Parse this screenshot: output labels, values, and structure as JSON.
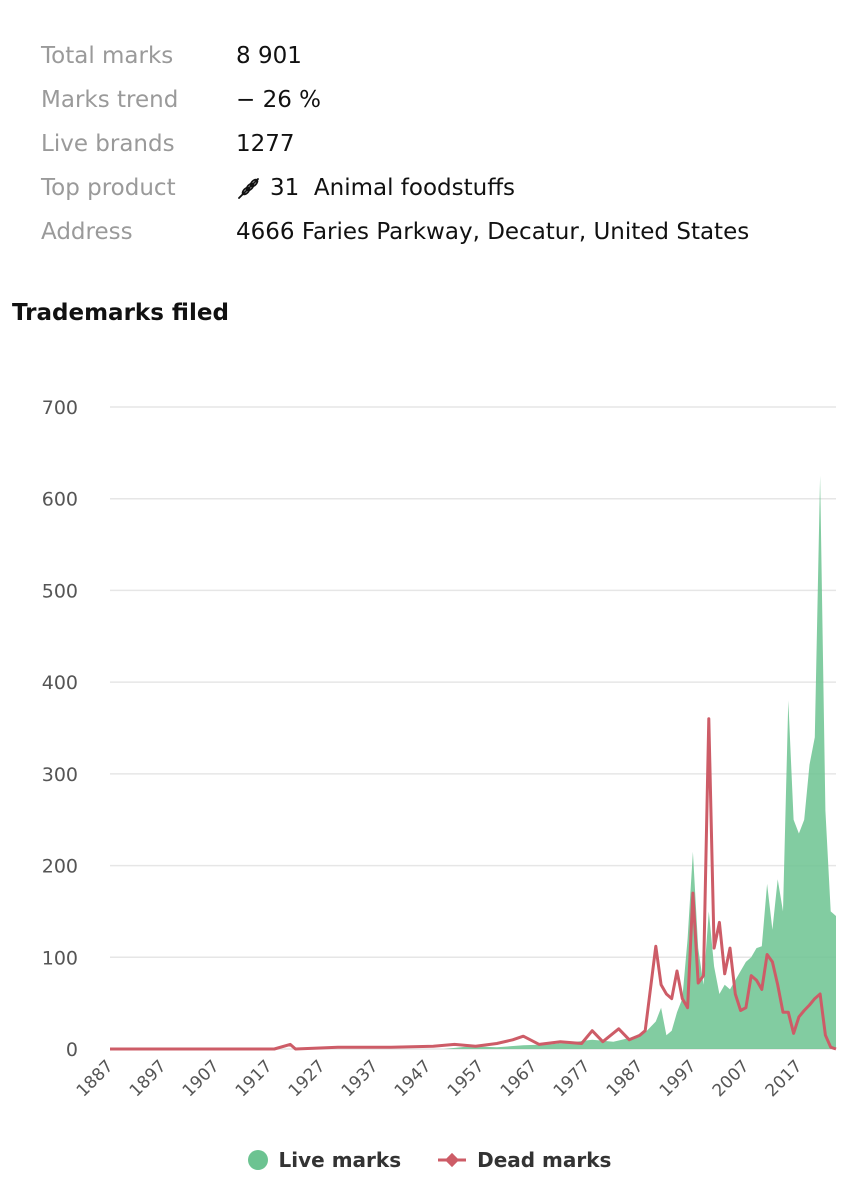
{
  "facts": [
    {
      "label": "Total marks",
      "value": "8 901"
    },
    {
      "label": "Marks trend",
      "value": "− 26 %"
    },
    {
      "label": "Live brands",
      "value": "1277"
    },
    {
      "label": "Top product",
      "value": "31  Animal foodstuffs",
      "icon": "wheat-icon"
    },
    {
      "label": "Address",
      "value": "4666 Faries Parkway, Decatur, United States"
    }
  ],
  "chart_data": {
    "type": "area",
    "title": "Trademarks filed",
    "xlabel": "",
    "ylabel": "",
    "ylim": [
      0,
      700
    ],
    "yticks": [
      "0",
      "100",
      "200",
      "300",
      "400",
      "500",
      "600",
      "700"
    ],
    "xticks": [
      "1887",
      "1897",
      "1907",
      "1917",
      "1927",
      "1937",
      "1947",
      "1957",
      "1967",
      "1977",
      "1987",
      "1997",
      "2007",
      "2017"
    ],
    "grid": true,
    "legend_position": "bottom",
    "series": [
      {
        "name": "Live marks",
        "type": "area",
        "color": "#6cc391",
        "points": [
          [
            1887,
            0
          ],
          [
            1950,
            0
          ],
          [
            1955,
            3
          ],
          [
            1960,
            2
          ],
          [
            1965,
            4
          ],
          [
            1970,
            5
          ],
          [
            1975,
            8
          ],
          [
            1978,
            10
          ],
          [
            1982,
            8
          ],
          [
            1985,
            12
          ],
          [
            1988,
            18
          ],
          [
            1990,
            30
          ],
          [
            1991,
            45
          ],
          [
            1992,
            15
          ],
          [
            1993,
            20
          ],
          [
            1994,
            40
          ],
          [
            1995,
            55
          ],
          [
            1996,
            120
          ],
          [
            1997,
            215
          ],
          [
            1998,
            110
          ],
          [
            1999,
            70
          ],
          [
            2000,
            150
          ],
          [
            2001,
            90
          ],
          [
            2002,
            60
          ],
          [
            2003,
            70
          ],
          [
            2004,
            65
          ],
          [
            2005,
            75
          ],
          [
            2006,
            85
          ],
          [
            2007,
            95
          ],
          [
            2008,
            100
          ],
          [
            2009,
            110
          ],
          [
            2010,
            112
          ],
          [
            2011,
            180
          ],
          [
            2012,
            130
          ],
          [
            2013,
            185
          ],
          [
            2014,
            150
          ],
          [
            2015,
            380
          ],
          [
            2016,
            250
          ],
          [
            2017,
            235
          ],
          [
            2018,
            250
          ],
          [
            2019,
            310
          ],
          [
            2020,
            340
          ],
          [
            2021,
            625
          ],
          [
            2022,
            260
          ],
          [
            2023,
            150
          ],
          [
            2024,
            145
          ]
        ]
      },
      {
        "name": "Dead marks",
        "type": "line",
        "color": "#cd5c67",
        "points": [
          [
            1887,
            0
          ],
          [
            1918,
            0
          ],
          [
            1921,
            5
          ],
          [
            1922,
            0
          ],
          [
            1930,
            2
          ],
          [
            1940,
            2
          ],
          [
            1948,
            3
          ],
          [
            1952,
            5
          ],
          [
            1956,
            3
          ],
          [
            1960,
            6
          ],
          [
            1963,
            10
          ],
          [
            1965,
            14
          ],
          [
            1968,
            5
          ],
          [
            1972,
            8
          ],
          [
            1976,
            6
          ],
          [
            1978,
            20
          ],
          [
            1980,
            8
          ],
          [
            1983,
            22
          ],
          [
            1985,
            10
          ],
          [
            1987,
            15
          ],
          [
            1988,
            20
          ],
          [
            1990,
            112
          ],
          [
            1991,
            70
          ],
          [
            1992,
            60
          ],
          [
            1993,
            55
          ],
          [
            1994,
            85
          ],
          [
            1995,
            55
          ],
          [
            1996,
            45
          ],
          [
            1997,
            170
          ],
          [
            1998,
            72
          ],
          [
            1999,
            80
          ],
          [
            2000,
            360
          ],
          [
            2001,
            110
          ],
          [
            2002,
            138
          ],
          [
            2003,
            82
          ],
          [
            2004,
            110
          ],
          [
            2005,
            60
          ],
          [
            2006,
            42
          ],
          [
            2007,
            45
          ],
          [
            2008,
            80
          ],
          [
            2009,
            75
          ],
          [
            2010,
            65
          ],
          [
            2011,
            103
          ],
          [
            2012,
            95
          ],
          [
            2013,
            70
          ],
          [
            2014,
            40
          ],
          [
            2015,
            40
          ],
          [
            2016,
            17
          ],
          [
            2017,
            35
          ],
          [
            2018,
            42
          ],
          [
            2019,
            48
          ],
          [
            2020,
            55
          ],
          [
            2021,
            60
          ],
          [
            2022,
            15
          ],
          [
            2023,
            2
          ],
          [
            2024,
            0
          ]
        ]
      }
    ]
  }
}
